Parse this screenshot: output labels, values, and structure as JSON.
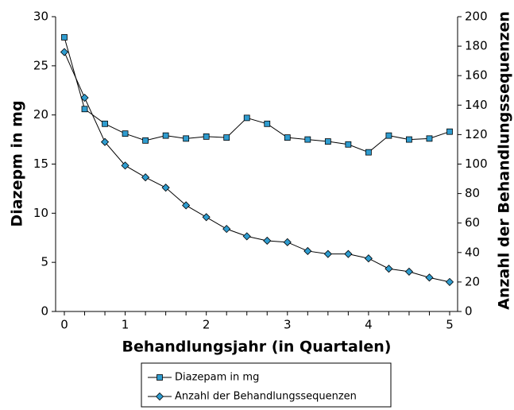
{
  "chart_data": {
    "type": "line",
    "x_label": "Behandlungsjahr (in Quartalen)",
    "y_label": "Diazepm in mg",
    "y2_label": "Anzahl der Behandlungssequenzen",
    "categories": [
      "0",
      null,
      null,
      "1",
      null,
      null,
      null,
      "2",
      null,
      null,
      null,
      "3",
      null,
      null,
      null,
      "4",
      null,
      null,
      null,
      "5"
    ],
    "ylim": [
      0,
      30
    ],
    "yticks": [
      0,
      5,
      10,
      15,
      20,
      25,
      30
    ],
    "y2lim": [
      0,
      200
    ],
    "y2ticks": [
      0,
      20,
      40,
      60,
      80,
      100,
      120,
      140,
      160,
      180,
      200
    ],
    "series": [
      {
        "name": "Diazepam in mg",
        "color": "#2f9ccf",
        "marker": "square",
        "values": [
          27.9,
          20.6,
          19.1,
          18.1,
          17.4,
          17.9,
          17.6,
          17.8,
          17.7,
          19.7,
          19.1,
          17.7,
          17.5,
          17.3,
          17.0,
          16.2,
          17.9,
          17.5,
          17.6,
          18.3
        ]
      },
      {
        "name": "Anzahl der Behandlungssequenzen",
        "color": "#2f9ccf",
        "marker": "diamond",
        "axis": "y2",
        "values": [
          176,
          145,
          115,
          99,
          91,
          84,
          72,
          64,
          56,
          51,
          48,
          47,
          41,
          39,
          39,
          36,
          29,
          27,
          23,
          20
        ]
      }
    ]
  }
}
